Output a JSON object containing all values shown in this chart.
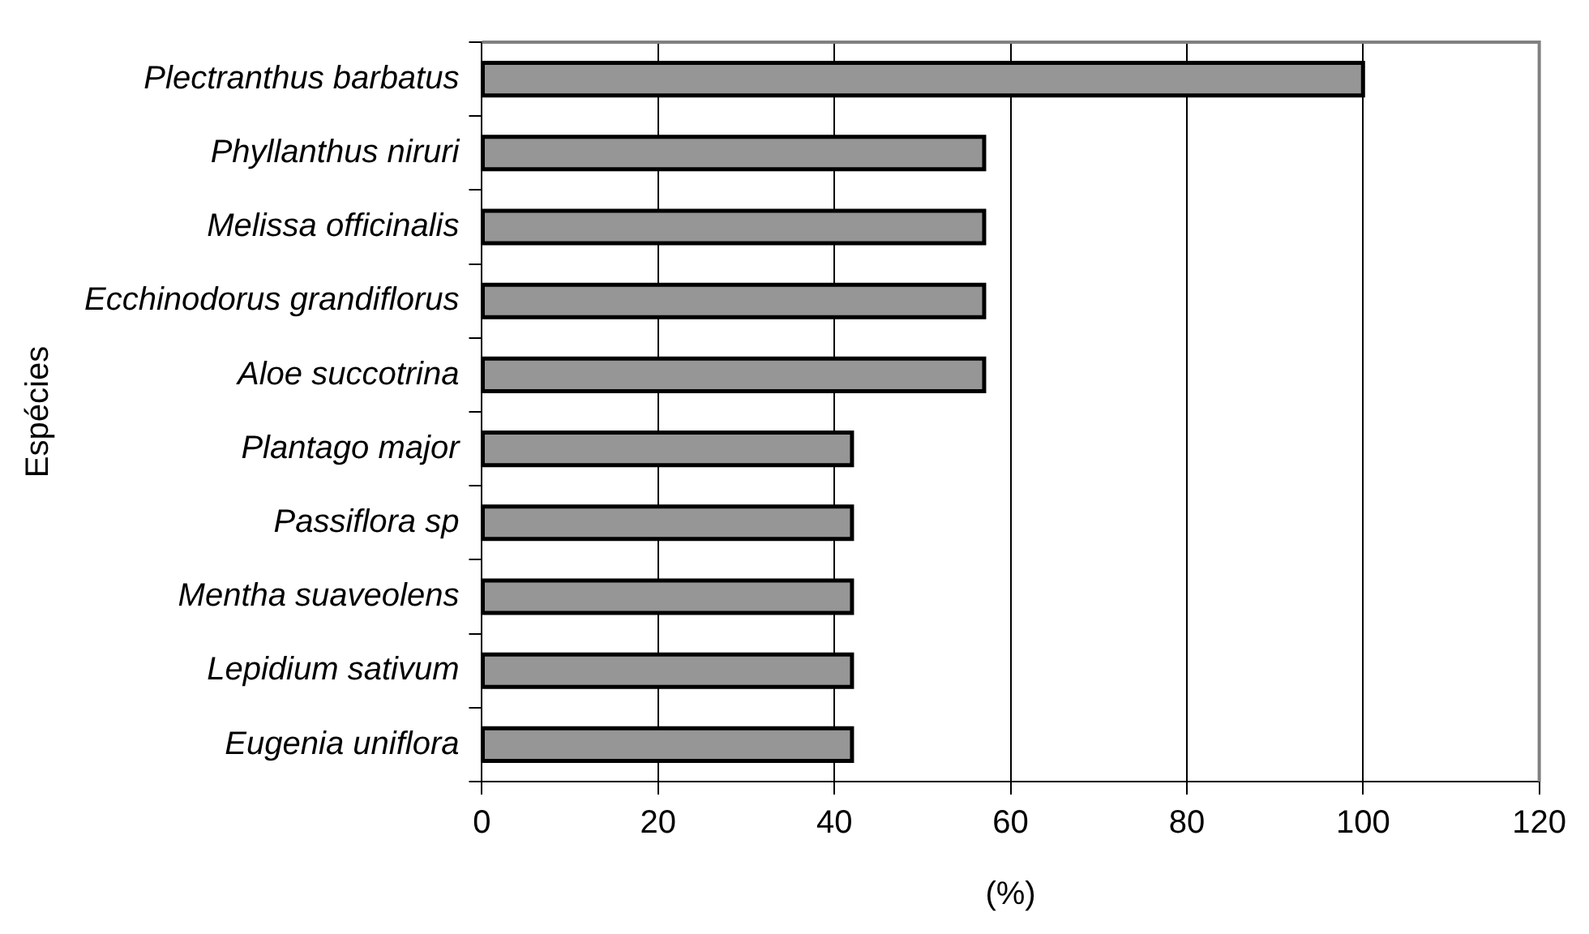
{
  "chart_data": {
    "type": "bar",
    "orientation": "horizontal",
    "xlabel": "(%)",
    "ylabel": "Espécies",
    "categories": [
      "Plectranthus barbatus",
      "Phyllanthus niruri",
      "Melissa officinalis",
      "Ecchinodorus grandiflorus",
      "Aloe succotrina",
      "Plantago major",
      "Passiflora sp",
      "Mentha suaveolens",
      "Lepidium sativum",
      "Eugenia uniflora"
    ],
    "values": [
      100,
      57,
      57,
      57,
      57,
      42,
      42,
      42,
      42,
      42
    ],
    "color": "#969696",
    "xlim": [
      0,
      120
    ],
    "xticks": [
      0,
      20,
      40,
      60,
      80,
      100,
      120
    ],
    "grid": "x"
  }
}
